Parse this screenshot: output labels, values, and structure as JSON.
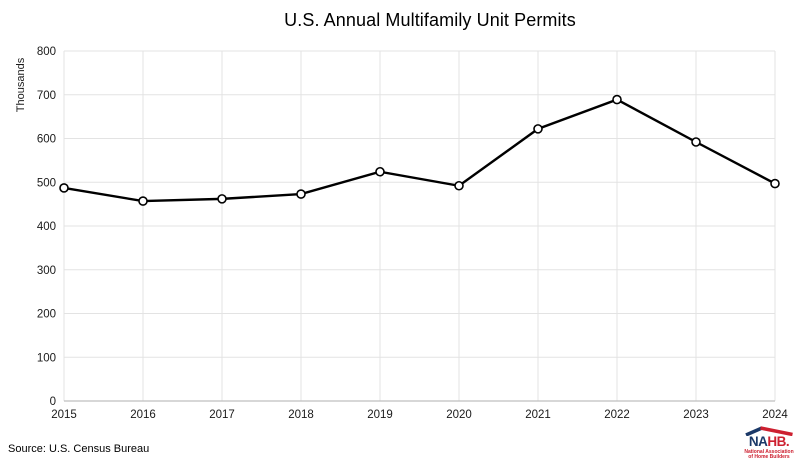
{
  "title": "U.S. Annual Multifamily Unit Permits",
  "source_note": "Source: U.S. Census Bureau",
  "chart_data": {
    "type": "line",
    "title": "U.S. Annual Multifamily Unit Permits",
    "xlabel": "",
    "ylabel": "Thousands",
    "categories": [
      "2015",
      "2016",
      "2017",
      "2018",
      "2019",
      "2020",
      "2021",
      "2022",
      "2023",
      "2024"
    ],
    "values": [
      487,
      457,
      462,
      473,
      524,
      492,
      622,
      689,
      592,
      497
    ],
    "ylim": [
      0,
      800
    ],
    "ytick_step": 100,
    "grid": true,
    "legend": "none",
    "line_color": "#000000",
    "marker_style": "open-circle"
  },
  "colors": {
    "gridline": "#e3e3e3",
    "axis_line": "#bfbfbf",
    "tick_label": "#1a1a1a",
    "series_line": "#000000",
    "marker_fill": "#ffffff",
    "logo_navy": "#1b3968",
    "logo_red": "#cd2030"
  },
  "logo": {
    "wordmark_na": "NA",
    "wordmark_hb": "HB",
    "wordmark_dot": ".",
    "subtext_line1": "National Association",
    "subtext_line2": "of Home Builders"
  }
}
